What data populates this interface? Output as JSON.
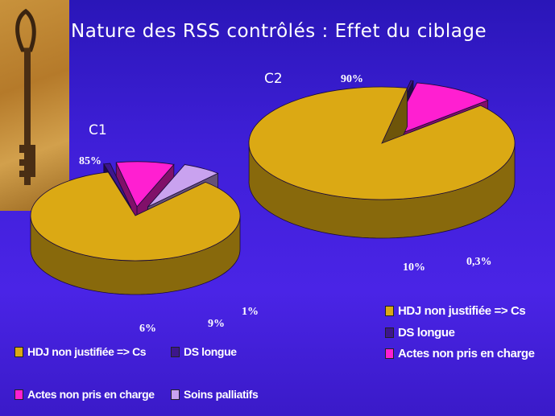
{
  "title": "Nature des RSS contrôlés : Effet du ciblage",
  "colors": {
    "hdj": "#dba914",
    "ds": "#3d168c",
    "actes": "#ff1fd1",
    "soins": "#c9a2ef"
  },
  "chart_data": [
    {
      "type": "pie",
      "title": "C1",
      "series": [
        {
          "name": "HDJ non justifiée => Cs",
          "value": 85,
          "label": "85%"
        },
        {
          "name": "DS longue",
          "value": 1,
          "label": "1%"
        },
        {
          "name": "Actes non pris en charge",
          "value": 9,
          "label": "9%"
        },
        {
          "name": "Soins palliatifs",
          "value": 6,
          "label": "6%"
        }
      ]
    },
    {
      "type": "pie",
      "title": "C2",
      "series": [
        {
          "name": "HDJ non justifiée => Cs",
          "value": 90,
          "label": "90%"
        },
        {
          "name": "DS longue",
          "value": 0.3,
          "label": "0,3%"
        },
        {
          "name": "Actes non pris en charge",
          "value": 10,
          "label": "10%"
        }
      ]
    }
  ],
  "legend_c1": [
    {
      "label": "HDJ non justifiée => Cs",
      "key": "hdj"
    },
    {
      "label": "DS longue",
      "key": "ds"
    },
    {
      "label": "Actes non pris en charge",
      "key": "actes"
    },
    {
      "label": "Soins palliatifs",
      "key": "soins"
    }
  ],
  "legend_c2": [
    {
      "label": "HDJ non justifiée => Cs",
      "key": "hdj"
    },
    {
      "label": "DS longue",
      "key": "ds"
    },
    {
      "label": "Actes non pris en charge",
      "key": "actes"
    }
  ]
}
